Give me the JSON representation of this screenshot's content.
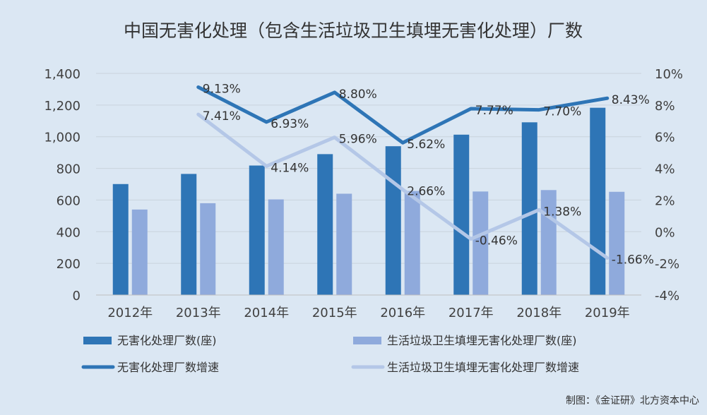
{
  "chart_data": {
    "type": "bar",
    "title": "中国无害化处理（包含生活垃圾卫生填埋无害化处理）厂数",
    "categories": [
      "2012年",
      "2013年",
      "2014年",
      "2015年",
      "2016年",
      "2017年",
      "2018年",
      "2019年"
    ],
    "y_left": {
      "range": [
        0,
        1400
      ],
      "ticks": [
        "0",
        "200",
        "400",
        "600",
        "800",
        "1,000",
        "1,200",
        "1,400"
      ]
    },
    "y_right": {
      "range": [
        -4,
        10
      ],
      "ticks": [
        "-4%",
        "-2%",
        "0%",
        "2%",
        "4%",
        "6%",
        "8%",
        "10%"
      ]
    },
    "grid": true,
    "legend_position": "bottom",
    "series": [
      {
        "name": "无害化处理厂数(座)",
        "type": "bar",
        "axis": "left",
        "color": "#2e75b6",
        "values": [
          701,
          765,
          818,
          890,
          940,
          1013,
          1091,
          1183
        ]
      },
      {
        "name": "生活垃圾卫生填埋无害化处理厂数(座)",
        "type": "bar",
        "axis": "left",
        "color": "#8faadc",
        "values": [
          540,
          580,
          604,
          640,
          657,
          654,
          663,
          652
        ]
      },
      {
        "name": "无害化处理厂数增速",
        "type": "line",
        "axis": "right",
        "color": "#2e75b6",
        "values": [
          null,
          9.13,
          6.93,
          8.8,
          5.62,
          7.77,
          7.7,
          8.43
        ],
        "labels": [
          "",
          "9.13%",
          "6.93%",
          "8.80%",
          "5.62%",
          "7.77%",
          "7.70%",
          "8.43%"
        ]
      },
      {
        "name": "生活垃圾卫生填埋无害化处理厂数增速",
        "type": "line",
        "axis": "right",
        "color": "#b4c7e7",
        "values": [
          null,
          7.41,
          4.14,
          5.96,
          2.66,
          -0.46,
          1.38,
          -1.66
        ],
        "labels": [
          "",
          "7.41%",
          "4.14%",
          "5.96%",
          "2.66%",
          "-0.46%",
          "1.38%",
          "-1.66%"
        ]
      }
    ],
    "source": "制图：《金证研》北方资本中心"
  }
}
